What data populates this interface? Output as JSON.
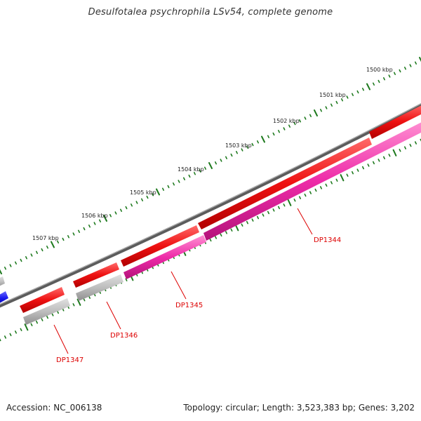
{
  "title": "Desulfotalea psychrophila LSv54, complete genome",
  "footer": {
    "accession": "Accession: NC_006138",
    "topology": "Topology: circular; Length: 3,523,383 bp; Genes: 3,202"
  },
  "scale_labels": [
    "1500 kbp",
    "1501 kbp",
    "1502 kbp",
    "1503 kbp",
    "1504 kbp",
    "1505 kbp",
    "1506 kbp",
    "1507 kbp"
  ],
  "gene_labels": [
    "DP1344",
    "DP1345",
    "DP1346",
    "DP1347"
  ],
  "colors": {
    "backbone": "#777777",
    "forward_gene": "#ee1111",
    "reverse_gene_pink": "#ee2ba8",
    "reverse_gene_gray": "#bdbdbd",
    "blue_gene": "#1a1aee",
    "tick": "#1e7a1e",
    "gene_label": "#dd0000"
  }
}
